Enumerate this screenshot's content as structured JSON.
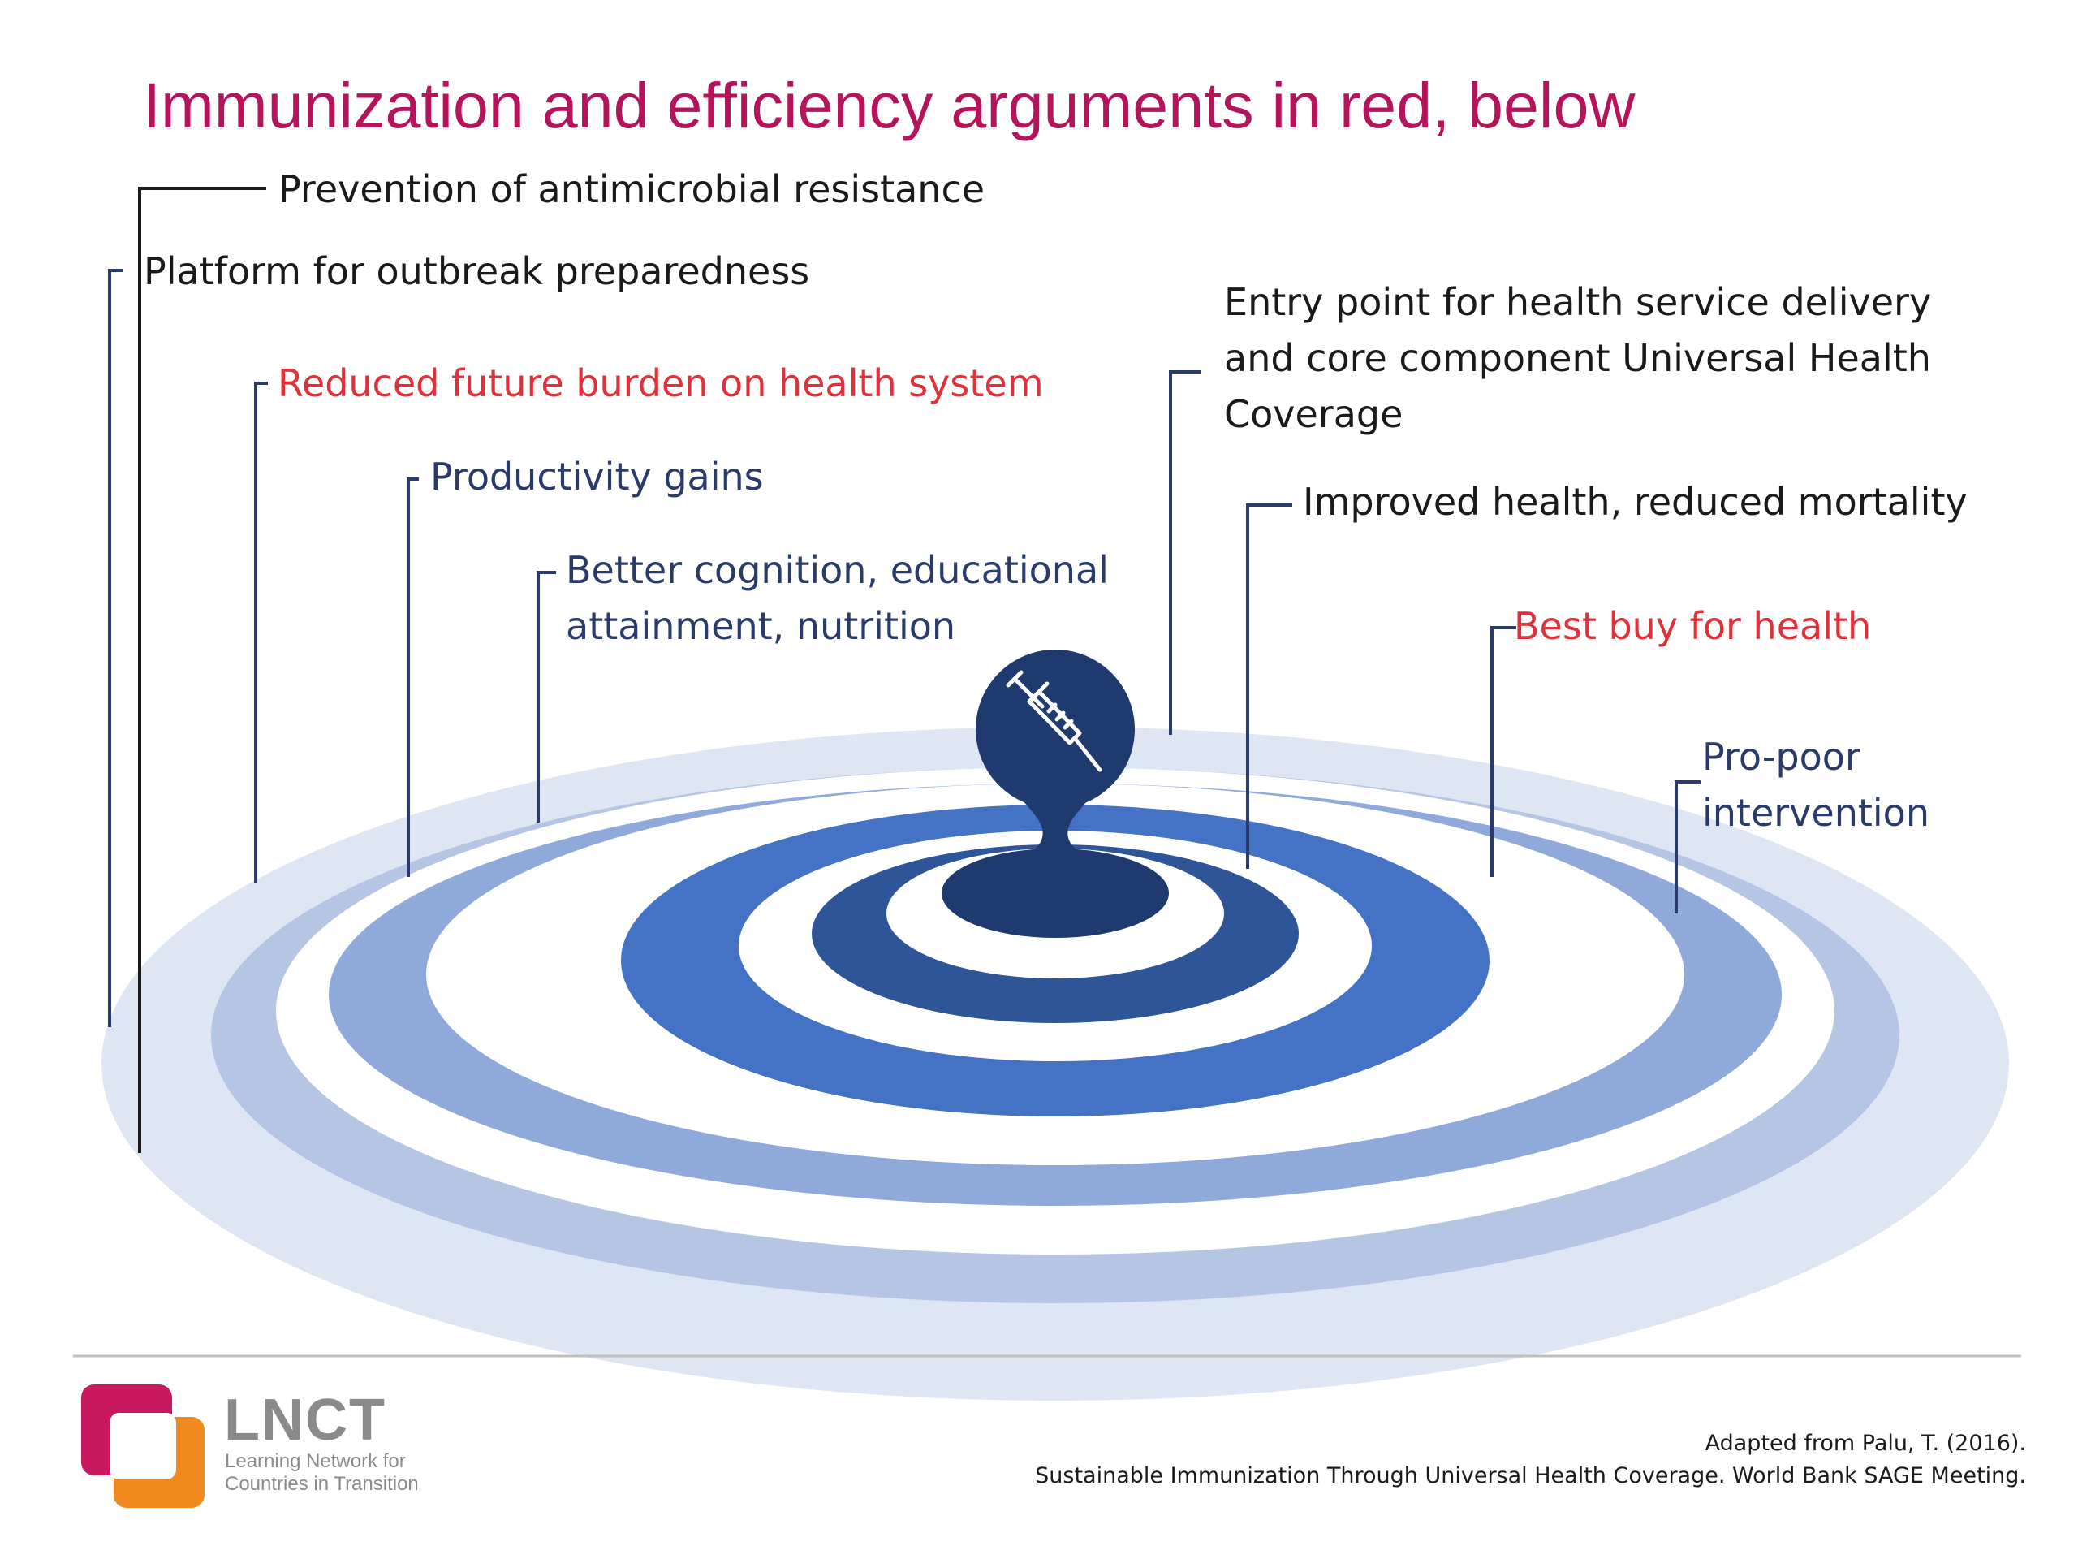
{
  "title": "Immunization and efficiency arguments in red, below",
  "labels": [
    {
      "id": "antimicrobial",
      "text": "Prevention of antimicrobial resistance",
      "color": "#1a1a1a"
    },
    {
      "id": "outbreak",
      "text": "Platform for outbreak preparedness",
      "color": "#1a1a1a"
    },
    {
      "id": "burden",
      "text": "Reduced future burden on health system",
      "color": "#e0303a"
    },
    {
      "id": "productivity",
      "text": "Productivity gains",
      "color": "#2a3b6b"
    },
    {
      "id": "cognition_line1",
      "text": "Better cognition, educational",
      "color": "#2a3b6b"
    },
    {
      "id": "cognition_line2",
      "text": "attainment, nutrition",
      "color": "#2a3b6b"
    },
    {
      "id": "entry_line1",
      "text": "Entry point for health service delivery",
      "color": "#1a1a1a"
    },
    {
      "id": "entry_line2",
      "text": "and core component Universal Health",
      "color": "#1a1a1a"
    },
    {
      "id": "entry_line3",
      "text": "Coverage",
      "color": "#1a1a1a"
    },
    {
      "id": "health",
      "text": "Improved health, reduced mortality",
      "color": "#1a1a1a"
    },
    {
      "id": "bestbuy",
      "text": "Best buy for health",
      "color": "#e0303a"
    },
    {
      "id": "propoor_line1",
      "text": "Pro-poor",
      "color": "#2a3b6b"
    },
    {
      "id": "propoor_line2",
      "text": "intervention",
      "color": "#2a3b6b"
    }
  ],
  "logo": {
    "name": "LNCT",
    "line1": "Learning Network for",
    "line2": "Countries in Transition",
    "colors": {
      "pink": "#c8185f",
      "orange": "#f0891e"
    }
  },
  "citation": {
    "line1": "Adapted from Palu, T. (2016).",
    "line2": "Sustainable Immunization Through Universal Health Coverage. World Bank SAGE Meeting."
  },
  "icons": {
    "center": "syringe-icon"
  },
  "colors": {
    "title": "#b5135a",
    "red_argument": "#e0303a",
    "navy_text": "#2a3b6b",
    "ripple_dark": "#1e3a6e",
    "ripple_mid": "#4472c4",
    "ripple_light": "#dfe6f3"
  }
}
